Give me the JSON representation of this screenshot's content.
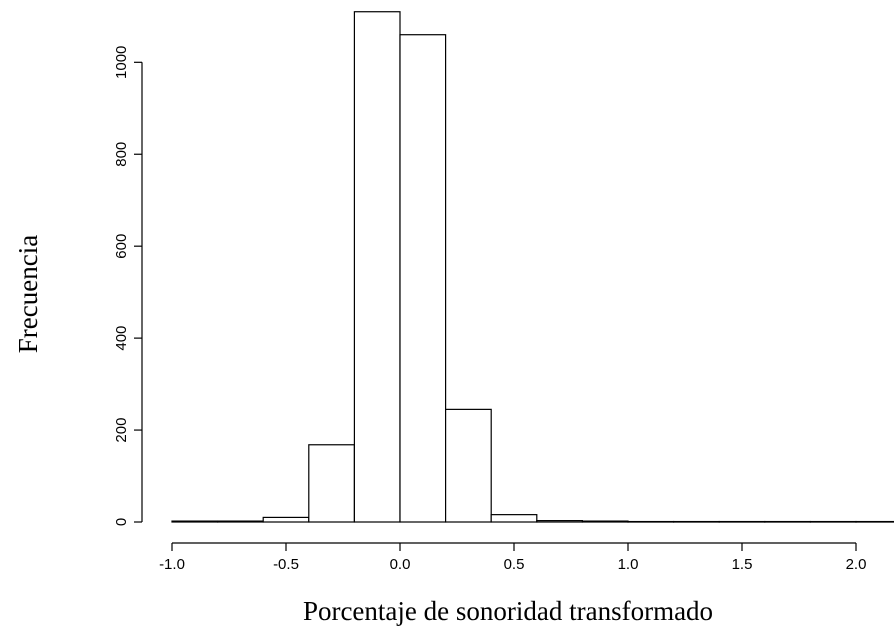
{
  "chart_data": {
    "type": "bar",
    "subtype": "histogram",
    "xlabel": "Porcentaje de sonoridad transformado",
    "ylabel": "Frecuencia",
    "bin_edges": [
      -1.0,
      -0.8,
      -0.6,
      -0.4,
      -0.2,
      0.0,
      0.2,
      0.4,
      0.6,
      0.8,
      1.0,
      1.2,
      1.4,
      1.6,
      1.8,
      2.0,
      2.2
    ],
    "values": [
      2,
      2,
      10,
      168,
      1110,
      1060,
      245,
      16,
      3,
      2,
      1,
      1,
      1,
      1,
      1,
      1
    ],
    "xlim": [
      -1.0,
      2.2
    ],
    "ylim": [
      0,
      1110
    ],
    "x_ticks": [
      -1.0,
      -0.5,
      0.0,
      0.5,
      1.0,
      1.5,
      2.0
    ],
    "x_tick_labels": [
      "-1.0",
      "-0.5",
      "0.0",
      "0.5",
      "1.0",
      "1.5",
      "2.0"
    ],
    "y_ticks": [
      0,
      200,
      400,
      600,
      800,
      1000
    ],
    "y_tick_labels": [
      "0",
      "200",
      "400",
      "600",
      "800",
      "1000"
    ],
    "grid": false,
    "bar_fill": "#ffffff",
    "bar_stroke": "#000000"
  }
}
